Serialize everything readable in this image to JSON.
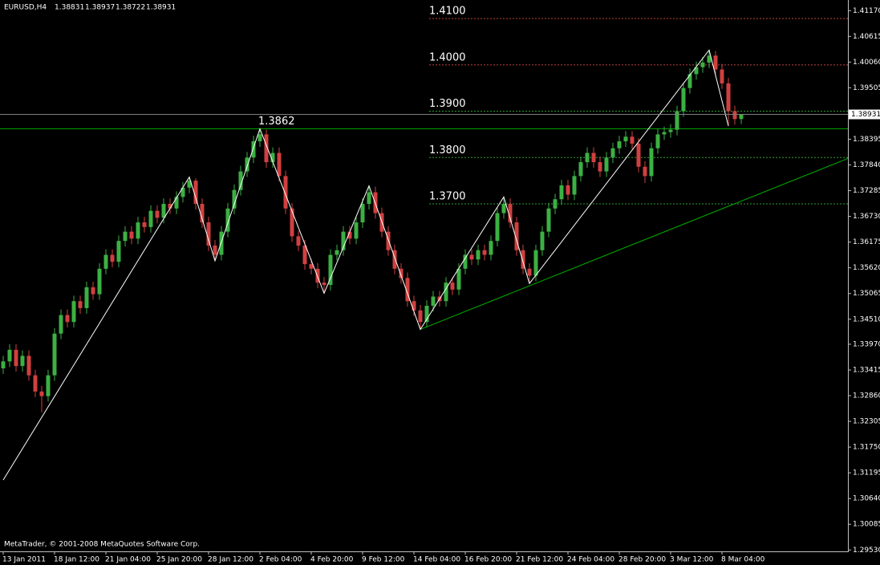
{
  "chart_data": {
    "type": "candlestick",
    "title": "EURUSD,H4",
    "footer": "MetaTrader, © 2001-2008 MetaQuotes Software Corp.",
    "up_color": "#3cb043",
    "down_color": "#d04040",
    "grid": false,
    "categories": [
      "13 Jan 2011",
      null,
      null,
      null,
      null,
      null,
      null,
      null,
      "18 Jan 12:00",
      null,
      null,
      null,
      null,
      null,
      null,
      null,
      "21 Jan 04:00",
      null,
      null,
      null,
      null,
      null,
      null,
      null,
      "25 Jan 20:00",
      null,
      null,
      null,
      null,
      null,
      null,
      null,
      "28 Jan 12:00",
      null,
      null,
      null,
      null,
      null,
      null,
      null,
      "2 Feb 04:00",
      null,
      null,
      null,
      null,
      null,
      null,
      null,
      "4 Feb 20:00",
      null,
      null,
      null,
      null,
      null,
      null,
      null,
      "9 Feb 12:00",
      null,
      null,
      null,
      null,
      null,
      null,
      null,
      "14 Feb 04:00",
      null,
      null,
      null,
      null,
      null,
      null,
      null,
      "16 Feb 20:00",
      null,
      null,
      null,
      null,
      null,
      null,
      null,
      "21 Feb 12:00",
      null,
      null,
      null,
      null,
      null,
      null,
      null,
      "24 Feb 04:00",
      null,
      null,
      null,
      null,
      null,
      null,
      null,
      "28 Feb 20:00",
      null,
      null,
      null,
      null,
      null,
      null,
      null,
      "3 Mar 12:00",
      null,
      null,
      null,
      null,
      null,
      null,
      null,
      "8 Mar 04:00",
      null,
      null,
      null
    ],
    "open": [
      1.3345,
      1.336,
      1.3385,
      1.335,
      1.3372,
      1.333,
      1.3295,
      1.3285,
      1.333,
      1.342,
      1.346,
      1.3445,
      1.349,
      1.3475,
      1.352,
      1.3505,
      1.356,
      1.359,
      1.3575,
      1.362,
      1.364,
      1.3625,
      1.366,
      1.365,
      1.3685,
      1.367,
      1.37,
      1.369,
      1.3715,
      1.3735,
      1.375,
      1.37,
      1.366,
      1.361,
      1.359,
      1.364,
      1.369,
      1.373,
      1.377,
      1.38,
      1.3835,
      1.385,
      1.379,
      1.381,
      1.376,
      1.369,
      1.363,
      1.361,
      1.357,
      1.356,
      1.353,
      1.3525,
      1.359,
      1.36,
      1.364,
      1.3625,
      1.366,
      1.37,
      1.3725,
      1.368,
      1.364,
      1.36,
      1.356,
      1.354,
      1.349,
      1.347,
      1.3445,
      1.348,
      1.35,
      1.349,
      1.353,
      1.3515,
      1.356,
      1.359,
      1.358,
      1.36,
      1.359,
      1.362,
      1.368,
      1.37,
      1.366,
      1.36,
      1.356,
      1.3545,
      1.36,
      1.364,
      1.369,
      1.371,
      1.374,
      1.372,
      1.376,
      1.379,
      1.381,
      1.379,
      1.377,
      1.38,
      1.382,
      1.3835,
      1.3845,
      1.383,
      1.378,
      1.376,
      1.382,
      1.385,
      1.3855,
      1.386,
      1.39,
      1.395,
      1.398,
      1.3995,
      1.4005,
      1.402,
      1.399,
      1.396,
      1.39,
      1.38831
    ],
    "high": [
      1.3372,
      1.3397,
      1.3397,
      1.3384,
      1.3384,
      1.3342,
      1.3307,
      1.3342,
      1.3432,
      1.3472,
      1.3472,
      1.3502,
      1.3502,
      1.3532,
      1.3532,
      1.3572,
      1.3602,
      1.3602,
      1.3632,
      1.3652,
      1.3652,
      1.3672,
      1.3672,
      1.3697,
      1.3697,
      1.3712,
      1.3712,
      1.3727,
      1.3747,
      1.3758,
      1.3755,
      1.3712,
      1.3672,
      1.3622,
      1.3652,
      1.3702,
      1.3742,
      1.3782,
      1.3812,
      1.3847,
      1.3862,
      1.386,
      1.3822,
      1.3822,
      1.3772,
      1.3702,
      1.3642,
      1.3622,
      1.3582,
      1.3572,
      1.3542,
      1.3602,
      1.3612,
      1.3652,
      1.3652,
      1.3672,
      1.3712,
      1.3739,
      1.3737,
      1.3692,
      1.3652,
      1.3612,
      1.3572,
      1.3552,
      1.3502,
      1.3482,
      1.3492,
      1.3512,
      1.3512,
      1.3542,
      1.3542,
      1.3572,
      1.3602,
      1.3602,
      1.3612,
      1.3612,
      1.3632,
      1.3692,
      1.3715,
      1.3712,
      1.3672,
      1.3612,
      1.3572,
      1.3612,
      1.3652,
      1.3702,
      1.3722,
      1.3752,
      1.3752,
      1.3772,
      1.3802,
      1.3822,
      1.3822,
      1.3802,
      1.3812,
      1.3832,
      1.3847,
      1.3857,
      1.3857,
      1.3842,
      1.3792,
      1.3832,
      1.3862,
      1.3867,
      1.3872,
      1.3912,
      1.3962,
      1.3992,
      1.4007,
      1.4017,
      1.4032,
      1.403,
      1.4002,
      1.3972,
      1.3912,
      1.38937
    ],
    "low": [
      1.3333,
      1.3348,
      1.3338,
      1.3338,
      1.3318,
      1.3283,
      1.325,
      1.3273,
      1.3318,
      1.3408,
      1.3433,
      1.3433,
      1.3463,
      1.3463,
      1.3493,
      1.3493,
      1.3548,
      1.3563,
      1.3563,
      1.3608,
      1.3613,
      1.3613,
      1.3638,
      1.3638,
      1.3658,
      1.3658,
      1.3678,
      1.3678,
      1.3703,
      1.3723,
      1.3688,
      1.3648,
      1.3598,
      1.3577,
      1.3578,
      1.3628,
      1.3678,
      1.3718,
      1.3758,
      1.3788,
      1.3823,
      1.3778,
      1.3778,
      1.3748,
      1.3678,
      1.3618,
      1.3598,
      1.3558,
      1.3548,
      1.3518,
      1.3507,
      1.3513,
      1.3578,
      1.3588,
      1.3613,
      1.3613,
      1.3648,
      1.3688,
      1.3668,
      1.3628,
      1.3588,
      1.3548,
      1.3528,
      1.3478,
      1.3458,
      1.3429,
      1.3433,
      1.3468,
      1.3478,
      1.3478,
      1.3503,
      1.3503,
      1.3548,
      1.3568,
      1.3568,
      1.3578,
      1.3578,
      1.3608,
      1.3668,
      1.3648,
      1.3588,
      1.3548,
      1.3528,
      1.3533,
      1.3588,
      1.3628,
      1.3678,
      1.3698,
      1.3708,
      1.3708,
      1.3748,
      1.3778,
      1.3778,
      1.3758,
      1.3758,
      1.3788,
      1.3808,
      1.3823,
      1.3818,
      1.3768,
      1.3745,
      1.3748,
      1.3808,
      1.3838,
      1.3843,
      1.3848,
      1.3888,
      1.3938,
      1.3968,
      1.3983,
      1.3993,
      1.3978,
      1.3948,
      1.3868,
      1.3871,
      1.38722
    ],
    "close": [
      1.336,
      1.3385,
      1.335,
      1.3372,
      1.333,
      1.3295,
      1.3285,
      1.333,
      1.342,
      1.346,
      1.3445,
      1.349,
      1.3475,
      1.352,
      1.3505,
      1.356,
      1.359,
      1.3575,
      1.362,
      1.364,
      1.3625,
      1.366,
      1.365,
      1.3685,
      1.367,
      1.37,
      1.369,
      1.3715,
      1.3735,
      1.375,
      1.37,
      1.366,
      1.361,
      1.359,
      1.364,
      1.369,
      1.373,
      1.377,
      1.38,
      1.3835,
      1.385,
      1.379,
      1.381,
      1.376,
      1.369,
      1.363,
      1.361,
      1.357,
      1.356,
      1.353,
      1.3525,
      1.359,
      1.36,
      1.364,
      1.3625,
      1.366,
      1.37,
      1.3725,
      1.368,
      1.364,
      1.36,
      1.356,
      1.354,
      1.349,
      1.347,
      1.3445,
      1.348,
      1.35,
      1.349,
      1.353,
      1.3515,
      1.356,
      1.359,
      1.358,
      1.36,
      1.359,
      1.362,
      1.368,
      1.37,
      1.366,
      1.36,
      1.356,
      1.3545,
      1.36,
      1.364,
      1.369,
      1.371,
      1.374,
      1.372,
      1.376,
      1.379,
      1.381,
      1.379,
      1.377,
      1.38,
      1.382,
      1.3835,
      1.3845,
      1.383,
      1.378,
      1.376,
      1.382,
      1.385,
      1.3855,
      1.386,
      1.39,
      1.395,
      1.398,
      1.3995,
      1.4005,
      1.402,
      1.399,
      1.396,
      1.39,
      1.3883,
      1.38931
    ],
    "zigzag": {
      "color": "#ffffff",
      "x": [
        0,
        29,
        33,
        40,
        50,
        57,
        65,
        78,
        82,
        110,
        113
      ],
      "y": [
        1.3104,
        1.3758,
        1.3577,
        1.3862,
        1.3507,
        1.3739,
        1.3429,
        1.3715,
        1.3528,
        1.4032,
        1.3868
      ]
    },
    "trendline": {
      "color": "#00b000",
      "x": [
        65,
        131.625
      ],
      "y": [
        1.3429,
        1.3798
      ]
    },
    "resistance": {
      "value": 1.3862,
      "color": "#00a000"
    },
    "levels": [
      {
        "value": 1.41,
        "label": "1.4100",
        "color": "#c04040"
      },
      {
        "value": 1.4,
        "label": "1.4000",
        "color": "#c04040"
      },
      {
        "value": 1.39,
        "label": "1.3900",
        "color": "#30a030"
      },
      {
        "value": 1.38,
        "label": "1.3800",
        "color": "#30a030"
      },
      {
        "value": 1.37,
        "label": "1.3700",
        "color": "#30a030"
      }
    ],
    "xlim": [
      -0.5,
      131.625
    ],
    "ylim": [
      1.295,
      1.414
    ],
    "yticks": [
      {
        "value": 1.4117,
        "label": "1.41170"
      },
      {
        "value": 1.40615,
        "label": "1.40615"
      },
      {
        "value": 1.4006,
        "label": "1.40060"
      },
      {
        "value": 1.39505,
        "label": "1.39505"
      },
      {
        "value": 1.38395,
        "label": "1.38395"
      },
      {
        "value": 1.3784,
        "label": "1.37840"
      },
      {
        "value": 1.37285,
        "label": "1.37285"
      },
      {
        "value": 1.3673,
        "label": "1.36730"
      },
      {
        "value": 1.36175,
        "label": "1.36175"
      },
      {
        "value": 1.3562,
        "label": "1.35620"
      },
      {
        "value": 1.35065,
        "label": "1.35065"
      },
      {
        "value": 1.3451,
        "label": "1.34510"
      },
      {
        "value": 1.3397,
        "label": "1.33970"
      },
      {
        "value": 1.33415,
        "label": "1.33415"
      },
      {
        "value": 1.3286,
        "label": "1.32860"
      },
      {
        "value": 1.32305,
        "label": "1.32305"
      },
      {
        "value": 1.3175,
        "label": "1.31750"
      },
      {
        "value": 1.31195,
        "label": "1.31195"
      },
      {
        "value": 1.3064,
        "label": "1.30640"
      },
      {
        "value": 1.30085,
        "label": "1.30085"
      },
      {
        "value": 1.2953,
        "label": "1.29530"
      }
    ]
  }
}
